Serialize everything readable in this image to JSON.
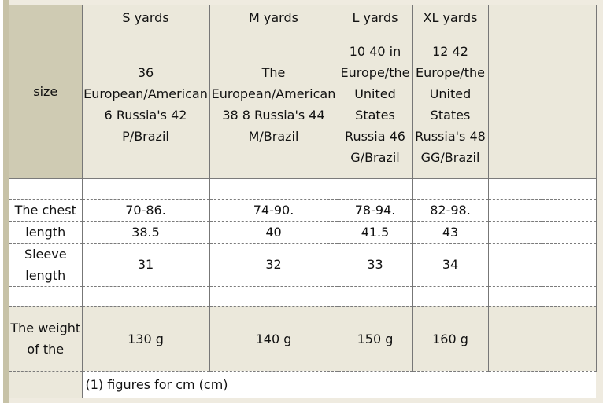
{
  "columns": [
    "S yards",
    "M yards",
    "L yards",
    "XL yards",
    "",
    ""
  ],
  "size_row": {
    "label": "size",
    "s": "36 European/American 6 Russia's 42 P/Brazil",
    "m": "The European/American 38 8 Russia's 44 M/Brazil",
    "l": "10 40 in Europe/the United States Russia 46 G/Brazil",
    "xl": "12 42 Europe/the United States Russia's 48 GG/Brazil"
  },
  "rows": {
    "chest": {
      "label": "The chest",
      "s": "70-86.",
      "m": "74-90.",
      "l": "78-94.",
      "xl": "82-98."
    },
    "length": {
      "label": "length",
      "s": "38.5",
      "m": "40",
      "l": "41.5",
      "xl": "43"
    },
    "sleeve": {
      "label": "Sleeve length",
      "s": "31",
      "m": "32",
      "l": "33",
      "xl": "34"
    },
    "weight": {
      "label": "The weight of the",
      "s": "130 g",
      "m": "140 g",
      "l": "150 g",
      "xl": "160 g"
    }
  },
  "note": "(1) figures for cm (cm)"
}
